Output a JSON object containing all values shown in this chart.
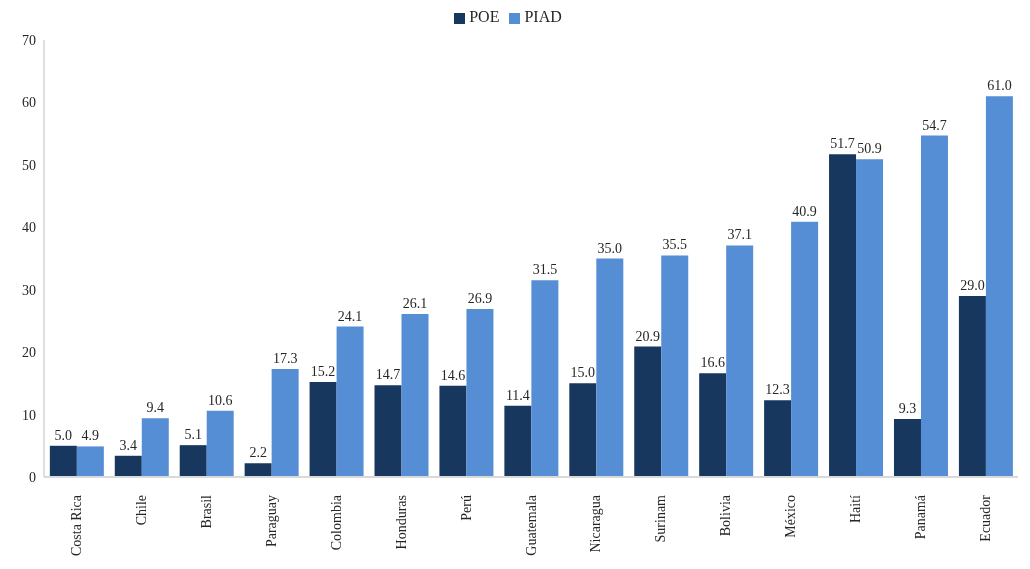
{
  "chart_data": {
    "type": "bar",
    "categories": [
      "Costa Rica",
      "Chile",
      "Brasil",
      "Paraguay",
      "Colombia",
      "Honduras",
      "Perú",
      "Guatemala",
      "Nicaragua",
      "Surinam",
      "Bolivia",
      "México",
      "Haití",
      "Panamá",
      "Ecuador"
    ],
    "series": [
      {
        "name": "POE",
        "color": "#17375e",
        "values": [
          5.0,
          3.4,
          5.1,
          2.2,
          15.2,
          14.7,
          14.6,
          11.4,
          15.0,
          20.9,
          16.6,
          12.3,
          51.7,
          9.3,
          29.0
        ],
        "value_labels": [
          "5.0",
          "3.4",
          "5.1",
          "2.2",
          "15.2",
          "14.7",
          "14.6",
          "11.4",
          "15.0",
          "20.9",
          "16.6",
          "12.3",
          "51.7",
          "9.3",
          "29.0"
        ]
      },
      {
        "name": "PIAD",
        "color": "#558ed5",
        "values": [
          4.9,
          9.4,
          10.6,
          17.3,
          24.1,
          26.1,
          26.9,
          31.5,
          35.0,
          35.5,
          37.1,
          40.9,
          50.9,
          54.7,
          61.0
        ],
        "value_labels": [
          "4.9",
          "9.4",
          "10.6",
          "17.3",
          "24.1",
          "26.1",
          "26.9",
          "31.5",
          "35.0",
          "35.5",
          "37.1",
          "40.9",
          "50.9",
          "54.7",
          "61.0"
        ]
      }
    ],
    "ylim": [
      0,
      70
    ],
    "yticks": [
      0,
      10,
      20,
      30,
      40,
      50,
      60,
      70
    ],
    "legend": "top"
  }
}
